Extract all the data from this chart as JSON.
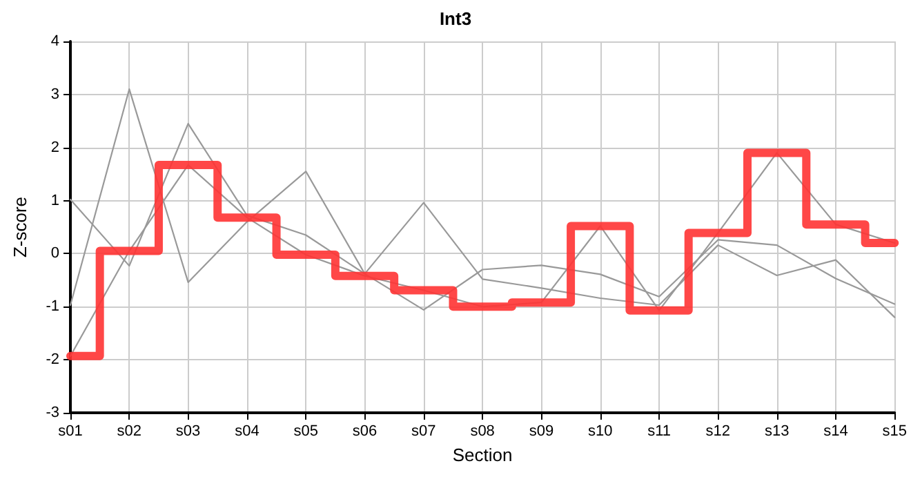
{
  "chart_data": {
    "type": "line",
    "title": "Int3",
    "xlabel": "Section",
    "ylabel": "Z-score",
    "categories": [
      "s01",
      "s02",
      "s03",
      "s04",
      "s05",
      "s06",
      "s07",
      "s08",
      "s09",
      "s10",
      "s11",
      "s12",
      "s13",
      "s14",
      "s15"
    ],
    "series": [
      {
        "type": "line",
        "color": "#999999",
        "values": [
          1.02,
          -0.23,
          2.45,
          0.72,
          0.35,
          -0.38,
          -1.06,
          -0.3,
          -0.22,
          -0.39,
          -0.81,
          0.26,
          0.16,
          -0.47,
          -0.95
        ]
      },
      {
        "type": "line",
        "color": "#999999",
        "values": [
          -0.97,
          3.1,
          -0.54,
          0.6,
          1.55,
          -0.38,
          0.96,
          -0.48,
          -0.65,
          -0.84,
          -0.97,
          0.16,
          -0.41,
          -0.12,
          -1.2
        ]
      },
      {
        "type": "line",
        "color": "#999999",
        "values": [
          -1.93,
          0.05,
          1.67,
          0.68,
          -0.02,
          -0.42,
          -0.69,
          -1.0,
          -0.92,
          0.52,
          -1.07,
          0.39,
          1.9,
          0.55,
          0.2
        ]
      },
      {
        "type": "step",
        "color": "#ff3333",
        "values": [
          -1.93,
          0.05,
          1.67,
          0.68,
          -0.02,
          -0.42,
          -0.69,
          -1.0,
          -0.92,
          0.52,
          -1.07,
          0.39,
          1.9,
          0.55,
          0.2
        ]
      }
    ],
    "ylim": [
      -3,
      4
    ],
    "yticks": [
      -3,
      -2,
      -1,
      0,
      1,
      2,
      3,
      4
    ],
    "grid": true,
    "marker": "none"
  }
}
